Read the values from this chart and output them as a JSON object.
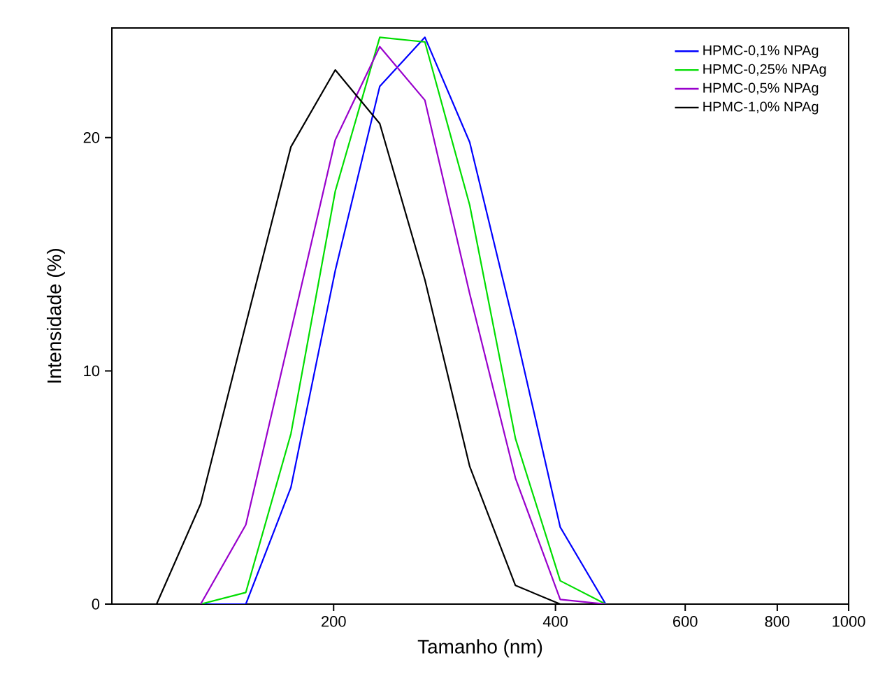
{
  "chart_data": {
    "type": "line",
    "xlabel": "Tamanho (nm)",
    "ylabel": "Intensidade (%)",
    "log": "x",
    "x": [
      115,
      132,
      152,
      175,
      201,
      231,
      266,
      306,
      353,
      406,
      468
    ],
    "xlim": [
      100,
      1000
    ],
    "xticks": [
      200,
      400,
      600,
      800,
      1000
    ],
    "ylim": [
      0,
      24.7
    ],
    "yticks": [
      0,
      10,
      20
    ],
    "legend": "top right",
    "grid": false,
    "marker": "none",
    "line_style": "solid",
    "series": [
      {
        "name": "HPMC-0,1% NPAg",
        "color": "#0000ff",
        "values": [
          null,
          0,
          0,
          5.0,
          14.3,
          22.2,
          24.3,
          19.8,
          11.7,
          3.3,
          0
        ]
      },
      {
        "name": "HPMC-0,25% NPAg",
        "color": "#00dd00",
        "values": [
          null,
          0,
          0.5,
          7.3,
          17.7,
          24.3,
          24.1,
          17.1,
          7.1,
          1.0,
          0
        ]
      },
      {
        "name": "HPMC-0,5% NPAg",
        "color": "#9900cc",
        "values": [
          null,
          0,
          3.4,
          11.7,
          19.9,
          23.9,
          21.6,
          13.3,
          5.4,
          0.2,
          0
        ]
      },
      {
        "name": "HPMC-1,0% NPAg",
        "color": "#000000",
        "values": [
          0,
          4.3,
          12.0,
          19.6,
          22.9,
          20.6,
          13.9,
          5.9,
          0.8,
          0,
          null
        ]
      }
    ]
  }
}
